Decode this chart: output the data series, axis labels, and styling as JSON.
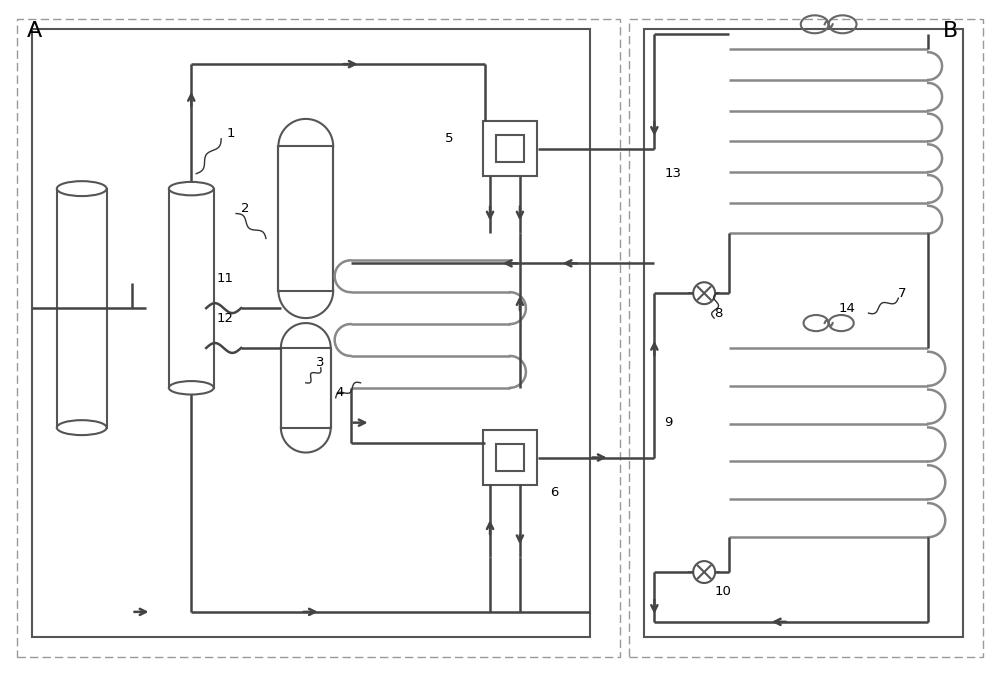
{
  "bg_color": "#ffffff",
  "lc": "#555555",
  "figsize": [
    10.0,
    6.78
  ],
  "dpi": 100,
  "label_A": "A",
  "label_B": "B"
}
